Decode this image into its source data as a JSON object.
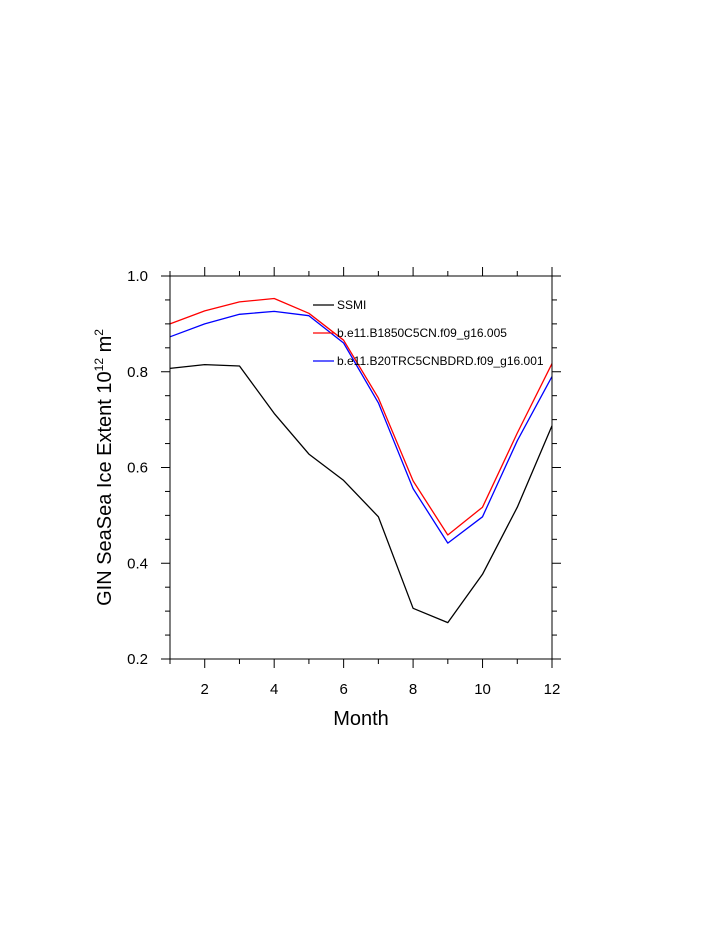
{
  "chart_data": {
    "type": "line",
    "xlabel": "Month",
    "ylabel_base": "GIN SeaSea Ice Extent 10",
    "ylabel_exp": "12",
    "ylabel_unit": " m",
    "ylabel_unit_exp": "2",
    "xlim": [
      1,
      12
    ],
    "ylim": [
      0.2,
      1.0
    ],
    "x_ticks": [
      2,
      4,
      6,
      8,
      10,
      12
    ],
    "y_ticks": [
      0.2,
      0.4,
      0.6,
      0.8,
      1.0
    ],
    "y_tick_labels": [
      "0.2",
      "0.4",
      "0.6",
      "0.8",
      "1.0"
    ],
    "legend_position": "top-right inside",
    "x": [
      1,
      2,
      3,
      4,
      5,
      6,
      7,
      8,
      9,
      10,
      11,
      12
    ],
    "series": [
      {
        "name": "SSMI",
        "color": "#000000",
        "values": [
          0.807,
          0.815,
          0.812,
          0.713,
          0.628,
          0.573,
          0.497,
          0.306,
          0.276,
          0.377,
          0.517,
          0.687
        ]
      },
      {
        "name": "b.e11.B1850C5CN.f09_g16.005",
        "color": "#ff0000",
        "values": [
          0.9,
          0.927,
          0.946,
          0.953,
          0.922,
          0.866,
          0.745,
          0.572,
          0.459,
          0.517,
          0.672,
          0.817
        ]
      },
      {
        "name": "b.e11.B20TRC5CNBDRD.f09_g16.001",
        "color": "#0000ff",
        "values": [
          0.873,
          0.9,
          0.92,
          0.926,
          0.917,
          0.86,
          0.735,
          0.556,
          0.442,
          0.497,
          0.656,
          0.79
        ]
      }
    ]
  }
}
